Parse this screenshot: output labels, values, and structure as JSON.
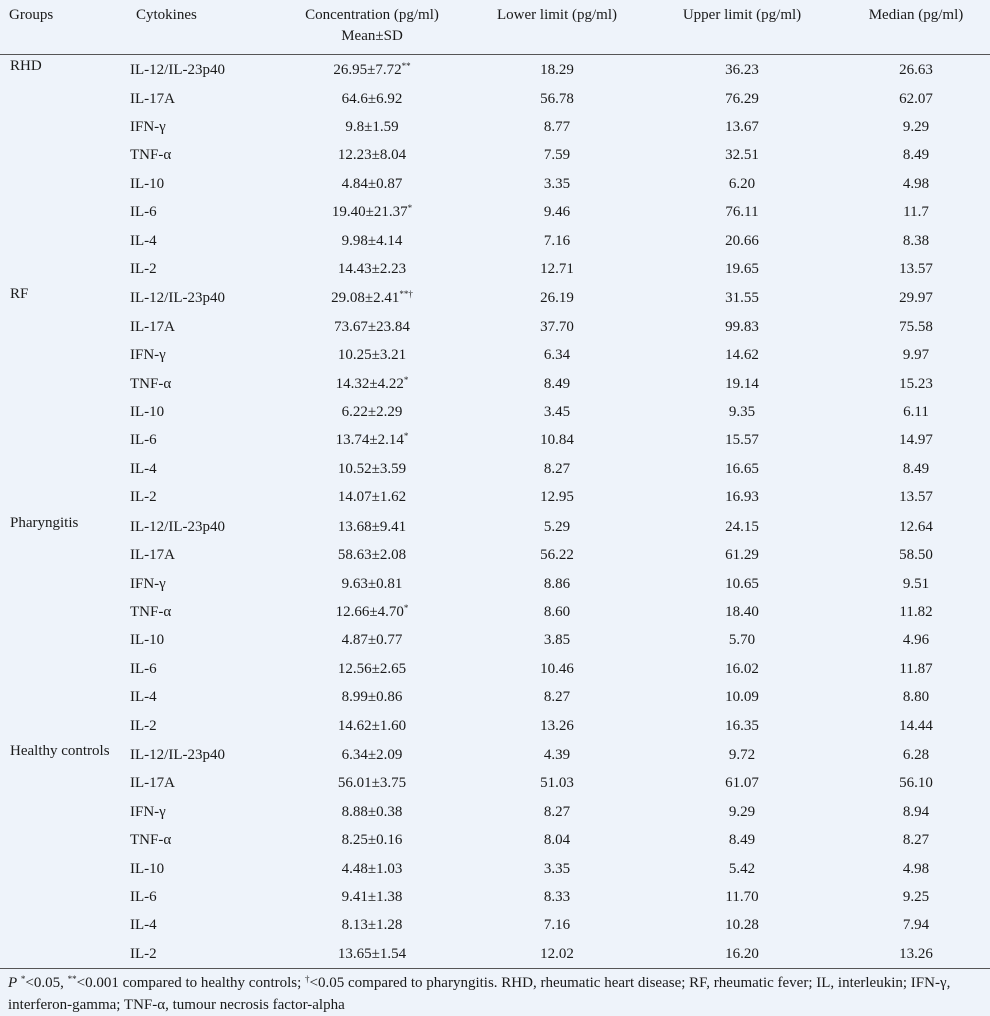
{
  "header": {
    "groups": "Groups",
    "cytokines": "Cytokines",
    "concentration_line1": "Concentration (pg/ml)",
    "concentration_line2": "Mean±SD",
    "lower": "Lower limit (pg/ml)",
    "upper": "Upper limit (pg/ml)",
    "median": "Median (pg/ml)"
  },
  "groups": [
    {
      "name": "RHD",
      "rows": [
        {
          "cytokine": "IL-12/IL-23p40",
          "conc": "26.95±7.72",
          "sup": "**",
          "lower": "18.29",
          "upper": "36.23",
          "median": "26.63"
        },
        {
          "cytokine": "IL-17A",
          "conc": "64.6±6.92",
          "sup": "",
          "lower": "56.78",
          "upper": "76.29",
          "median": "62.07"
        },
        {
          "cytokine": "IFN-γ",
          "conc": "9.8±1.59",
          "sup": "",
          "lower": "8.77",
          "upper": "13.67",
          "median": "9.29"
        },
        {
          "cytokine": "TNF-α",
          "conc": "12.23±8.04",
          "sup": "",
          "lower": "7.59",
          "upper": "32.51",
          "median": "8.49"
        },
        {
          "cytokine": "IL-10",
          "conc": "4.84±0.87",
          "sup": "",
          "lower": "3.35",
          "upper": "6.20",
          "median": "4.98"
        },
        {
          "cytokine": "IL-6",
          "conc": "19.40±21.37",
          "sup": "*",
          "lower": "9.46",
          "upper": "76.11",
          "median": "11.7"
        },
        {
          "cytokine": "IL-4",
          "conc": "9.98±4.14",
          "sup": "",
          "lower": "7.16",
          "upper": "20.66",
          "median": "8.38"
        },
        {
          "cytokine": "IL-2",
          "conc": "14.43±2.23",
          "sup": "",
          "lower": "12.71",
          "upper": "19.65",
          "median": "13.57"
        }
      ]
    },
    {
      "name": "RF",
      "rows": [
        {
          "cytokine": "IL-12/IL-23p40",
          "conc": "29.08±2.41",
          "sup": "**†",
          "lower": "26.19",
          "upper": "31.55",
          "median": "29.97"
        },
        {
          "cytokine": "IL-17A",
          "conc": "73.67±23.84",
          "sup": "",
          "lower": "37.70",
          "upper": "99.83",
          "median": "75.58"
        },
        {
          "cytokine": "IFN-γ",
          "conc": "10.25±3.21",
          "sup": "",
          "lower": "6.34",
          "upper": "14.62",
          "median": "9.97"
        },
        {
          "cytokine": "TNF-α",
          "conc": "14.32±4.22",
          "sup": "*",
          "lower": "8.49",
          "upper": "19.14",
          "median": "15.23"
        },
        {
          "cytokine": "IL-10",
          "conc": "6.22±2.29",
          "sup": "",
          "lower": "3.45",
          "upper": "9.35",
          "median": "6.11"
        },
        {
          "cytokine": "IL-6",
          "conc": "13.74±2.14",
          "sup": "*",
          "lower": "10.84",
          "upper": "15.57",
          "median": "14.97"
        },
        {
          "cytokine": "IL-4",
          "conc": "10.52±3.59",
          "sup": "",
          "lower": "8.27",
          "upper": "16.65",
          "median": "8.49"
        },
        {
          "cytokine": "IL-2",
          "conc": "14.07±1.62",
          "sup": "",
          "lower": "12.95",
          "upper": "16.93",
          "median": "13.57"
        }
      ]
    },
    {
      "name": "Pharyngitis",
      "rows": [
        {
          "cytokine": "IL-12/IL-23p40",
          "conc": "13.68±9.41",
          "sup": "",
          "lower": "5.29",
          "upper": "24.15",
          "median": "12.64"
        },
        {
          "cytokine": "IL-17A",
          "conc": "58.63±2.08",
          "sup": "",
          "lower": "56.22",
          "upper": "61.29",
          "median": "58.50"
        },
        {
          "cytokine": "IFN-γ",
          "conc": "9.63±0.81",
          "sup": "",
          "lower": "8.86",
          "upper": "10.65",
          "median": "9.51"
        },
        {
          "cytokine": "TNF-α",
          "conc": "12.66±4.70",
          "sup": "*",
          "lower": "8.60",
          "upper": "18.40",
          "median": "11.82"
        },
        {
          "cytokine": "IL-10",
          "conc": "4.87±0.77",
          "sup": "",
          "lower": "3.85",
          "upper": "5.70",
          "median": "4.96"
        },
        {
          "cytokine": "IL-6",
          "conc": "12.56±2.65",
          "sup": "",
          "lower": "10.46",
          "upper": "16.02",
          "median": "11.87"
        },
        {
          "cytokine": "IL-4",
          "conc": "8.99±0.86",
          "sup": "",
          "lower": "8.27",
          "upper": "10.09",
          "median": "8.80"
        },
        {
          "cytokine": "IL-2",
          "conc": "14.62±1.60",
          "sup": "",
          "lower": "13.26",
          "upper": "16.35",
          "median": "14.44"
        }
      ]
    },
    {
      "name": "Healthy controls",
      "rows": [
        {
          "cytokine": "IL-12/IL-23p40",
          "conc": "6.34±2.09",
          "sup": "",
          "lower": "4.39",
          "upper": "9.72",
          "median": "6.28"
        },
        {
          "cytokine": "IL-17A",
          "conc": "56.01±3.75",
          "sup": "",
          "lower": "51.03",
          "upper": "61.07",
          "median": "56.10"
        },
        {
          "cytokine": "IFN-γ",
          "conc": "8.88±0.38",
          "sup": "",
          "lower": "8.27",
          "upper": "9.29",
          "median": "8.94"
        },
        {
          "cytokine": "TNF-α",
          "conc": "8.25±0.16",
          "sup": "",
          "lower": "8.04",
          "upper": "8.49",
          "median": "8.27"
        },
        {
          "cytokine": "IL-10",
          "conc": "4.48±1.03",
          "sup": "",
          "lower": "3.35",
          "upper": "5.42",
          "median": "4.98"
        },
        {
          "cytokine": "IL-6",
          "conc": "9.41±1.38",
          "sup": "",
          "lower": "8.33",
          "upper": "11.70",
          "median": "9.25"
        },
        {
          "cytokine": "IL-4",
          "conc": "8.13±1.28",
          "sup": "",
          "lower": "7.16",
          "upper": "10.28",
          "median": "7.94"
        },
        {
          "cytokine": "IL-2",
          "conc": "13.65±1.54",
          "sup": "",
          "lower": "12.02",
          "upper": "16.20",
          "median": "13.26"
        }
      ]
    }
  ],
  "footnote": {
    "p_label": "P",
    "sup1": "*",
    "text1": "<0.05, ",
    "sup2": "**",
    "text2": "<0.001 compared to healthy controls; ",
    "sup3": "†",
    "text3": "<0.05 compared to pharyngitis. RHD, rheumatic heart disease; RF, rheumatic fever; IL, interleukin; IFN-γ, interferon-gamma; TNF-α, tumour necrosis factor-alpha"
  }
}
